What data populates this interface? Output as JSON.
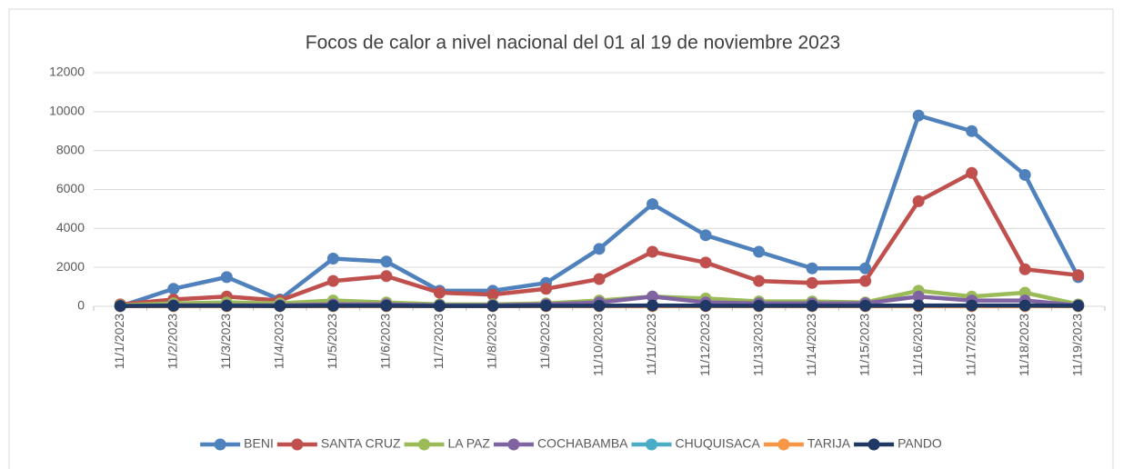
{
  "chart_data": {
    "type": "line",
    "title": "Focos de calor a nivel nacional del 01 al 19 de noviembre 2023",
    "categories": [
      "11/1/2023",
      "11/2/2023",
      "11/3/2023",
      "11/4/2023",
      "11/5/2023",
      "11/6/2023",
      "11/7/2023",
      "11/8/2023",
      "11/9/2023",
      "11/10/2023",
      "11/11/2023",
      "11/12/2023",
      "11/13/2023",
      "11/14/2023",
      "11/15/2023",
      "11/16/2023",
      "11/17/2023",
      "11/18/2023",
      "11/19/2023"
    ],
    "series": [
      {
        "name": "BENI",
        "color": "#4f81bd",
        "values": [
          0,
          900,
          1500,
          350,
          2450,
          2300,
          800,
          800,
          1200,
          2950,
          5250,
          3650,
          2800,
          1950,
          1950,
          9800,
          9000,
          6750,
          1500
        ]
      },
      {
        "name": "SANTA CRUZ",
        "color": "#c0504d",
        "values": [
          100,
          350,
          500,
          300,
          1300,
          1550,
          700,
          600,
          900,
          1400,
          2800,
          2250,
          1300,
          1200,
          1300,
          5400,
          6850,
          1900,
          1600
        ]
      },
      {
        "name": "LA PAZ",
        "color": "#9bbb59",
        "values": [
          50,
          150,
          200,
          150,
          300,
          200,
          100,
          100,
          150,
          300,
          500,
          400,
          250,
          250,
          200,
          800,
          500,
          700,
          100
        ]
      },
      {
        "name": "COCHABAMBA",
        "color": "#8064a2",
        "values": [
          20,
          50,
          50,
          50,
          100,
          100,
          50,
          50,
          100,
          200,
          500,
          200,
          150,
          150,
          150,
          500,
          300,
          300,
          50
        ]
      },
      {
        "name": "CHUQUISACA",
        "color": "#4bacc6",
        "values": [
          10,
          10,
          10,
          10,
          10,
          10,
          10,
          10,
          10,
          10,
          10,
          10,
          10,
          10,
          10,
          10,
          10,
          10,
          10
        ]
      },
      {
        "name": "TARIJA",
        "color": "#f79646",
        "values": [
          5,
          5,
          5,
          5,
          5,
          5,
          5,
          5,
          5,
          5,
          5,
          5,
          5,
          5,
          5,
          5,
          5,
          5,
          5
        ]
      },
      {
        "name": "PANDO",
        "color": "#1f3864",
        "values": [
          20,
          30,
          30,
          20,
          30,
          30,
          20,
          20,
          30,
          30,
          40,
          30,
          30,
          30,
          30,
          40,
          40,
          40,
          30
        ]
      }
    ],
    "ylim": [
      0,
      12000
    ],
    "yticks": [
      0,
      2000,
      4000,
      6000,
      8000,
      10000,
      12000
    ],
    "grid": true,
    "legend": "bottom"
  }
}
